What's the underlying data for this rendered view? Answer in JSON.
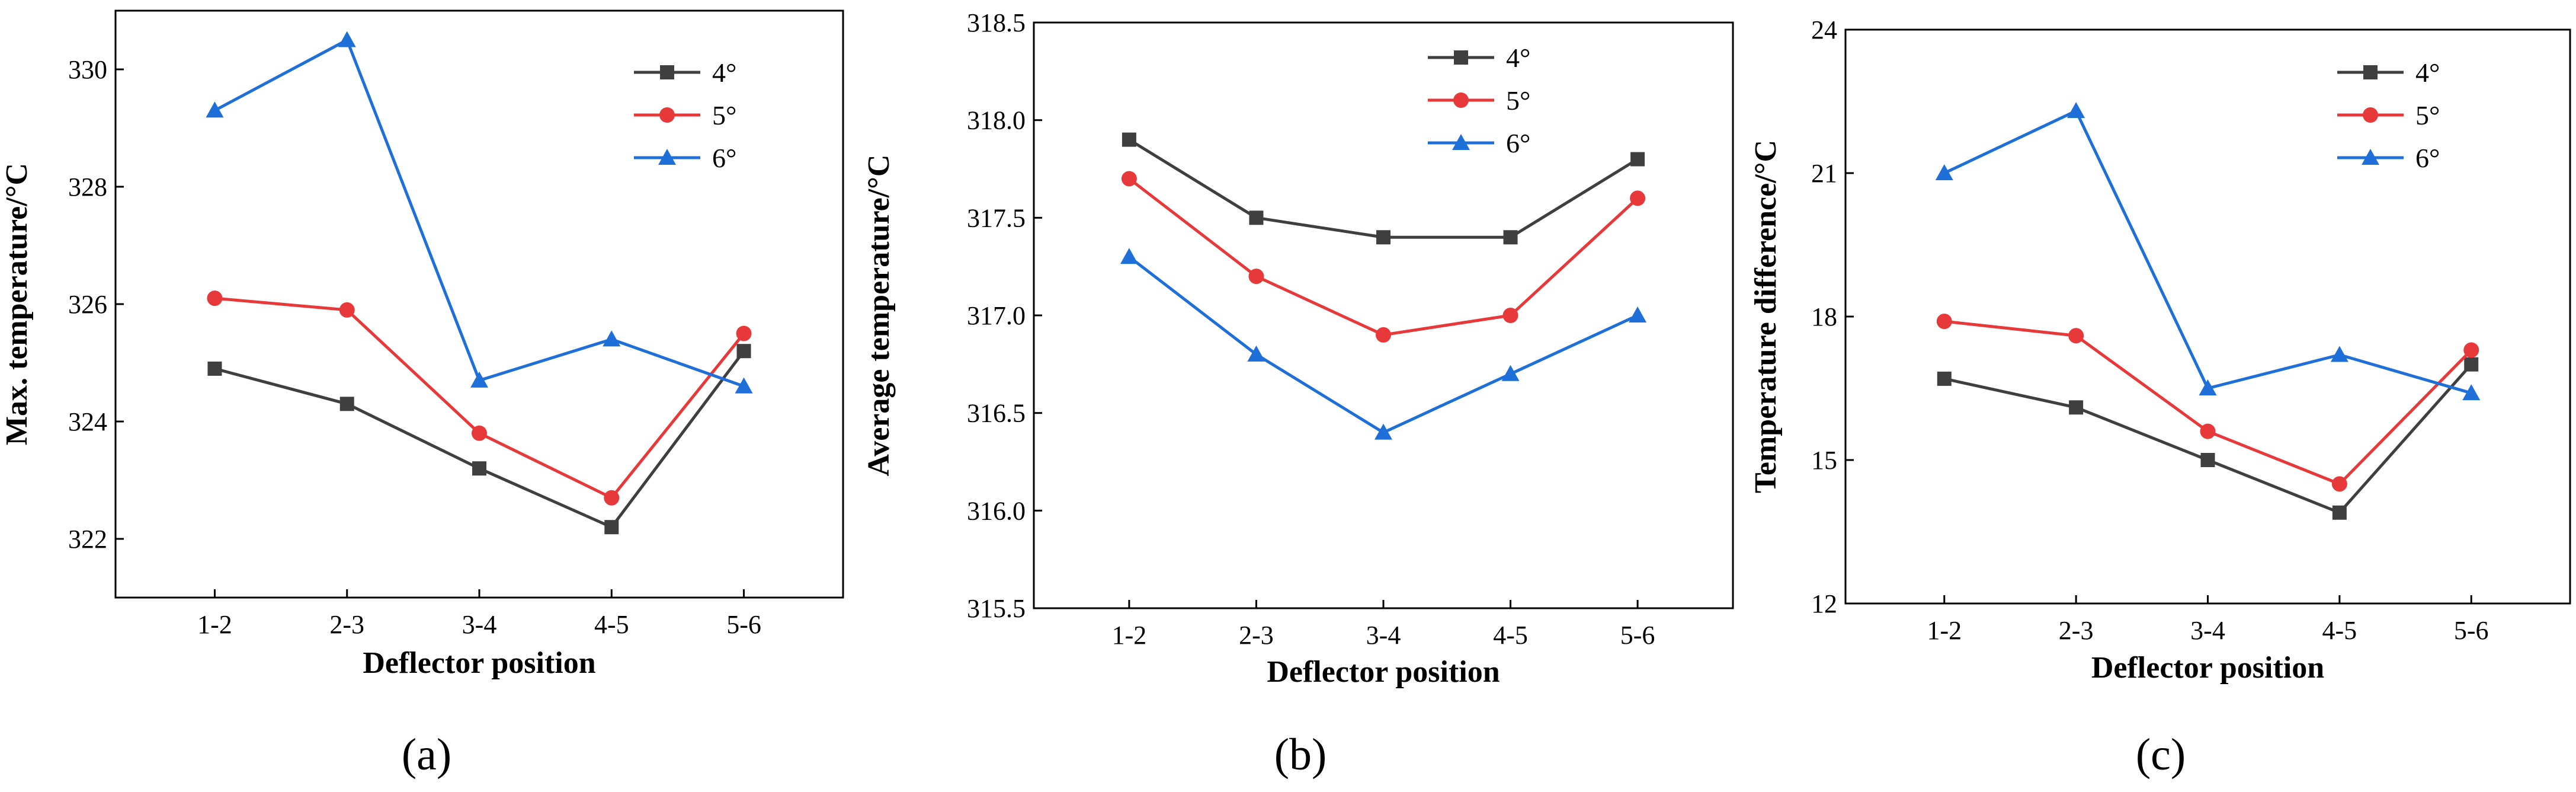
{
  "figure": {
    "panel_labels": [
      "(a)",
      "(b)",
      "(c)"
    ]
  },
  "chart_data": [
    {
      "type": "line",
      "panel": "a",
      "title": "",
      "xlabel": "Deflector position",
      "ylabel": "Max. temperature/°C",
      "categories": [
        "1-2",
        "2-3",
        "3-4",
        "4-5",
        "5-6"
      ],
      "ylim": [
        321,
        331
      ],
      "yticks": [
        322,
        324,
        326,
        328,
        330
      ],
      "ytick_labels": [
        "322",
        "324",
        "326",
        "328",
        "330"
      ],
      "legend_position": "top-right",
      "series": [
        {
          "name": "4°",
          "color": "#3f3f3f",
          "marker": "square",
          "values": [
            324.9,
            324.3,
            323.2,
            322.2,
            325.2
          ]
        },
        {
          "name": "5°",
          "color": "#e8393a",
          "marker": "circle",
          "values": [
            326.1,
            325.9,
            323.8,
            322.7,
            325.5
          ]
        },
        {
          "name": "6°",
          "color": "#1f6fd8",
          "marker": "triangle",
          "values": [
            329.3,
            330.5,
            324.7,
            325.4,
            324.6
          ]
        }
      ]
    },
    {
      "type": "line",
      "panel": "b",
      "title": "",
      "xlabel": "Deflector position",
      "ylabel": "Average temperature/°C",
      "categories": [
        "1-2",
        "2-3",
        "3-4",
        "4-5",
        "5-6"
      ],
      "ylim": [
        315.5,
        318.5
      ],
      "yticks": [
        315.5,
        316.0,
        316.5,
        317.0,
        317.5,
        318.0,
        318.5
      ],
      "ytick_labels": [
        "315.5",
        "316.0",
        "316.5",
        "317.0",
        "317.5",
        "318.0",
        "318.5"
      ],
      "legend_position": "top-right",
      "series": [
        {
          "name": "4°",
          "color": "#3f3f3f",
          "marker": "square",
          "values": [
            317.9,
            317.5,
            317.4,
            317.4,
            317.8
          ]
        },
        {
          "name": "5°",
          "color": "#e8393a",
          "marker": "circle",
          "values": [
            317.7,
            317.2,
            316.9,
            317.0,
            317.6
          ]
        },
        {
          "name": "6°",
          "color": "#1f6fd8",
          "marker": "triangle",
          "values": [
            317.3,
            316.8,
            316.4,
            316.7,
            317.0
          ]
        }
      ]
    },
    {
      "type": "line",
      "panel": "c",
      "title": "",
      "xlabel": "Deflector position",
      "ylabel": "Temperature difference/°C",
      "categories": [
        "1-2",
        "2-3",
        "3-4",
        "4-5",
        "5-6"
      ],
      "ylim": [
        12,
        24
      ],
      "yticks": [
        12,
        15,
        18,
        21,
        24
      ],
      "ytick_labels": [
        "12",
        "15",
        "18",
        "21",
        "24"
      ],
      "legend_position": "top-right",
      "series": [
        {
          "name": "4°",
          "color": "#3f3f3f",
          "marker": "square",
          "values": [
            16.7,
            16.1,
            15.0,
            13.9,
            17.0
          ]
        },
        {
          "name": "5°",
          "color": "#e8393a",
          "marker": "circle",
          "values": [
            17.9,
            17.6,
            15.6,
            14.5,
            17.3
          ]
        },
        {
          "name": "6°",
          "color": "#1f6fd8",
          "marker": "triangle",
          "values": [
            21.0,
            22.3,
            16.5,
            17.2,
            16.4
          ]
        }
      ]
    }
  ]
}
